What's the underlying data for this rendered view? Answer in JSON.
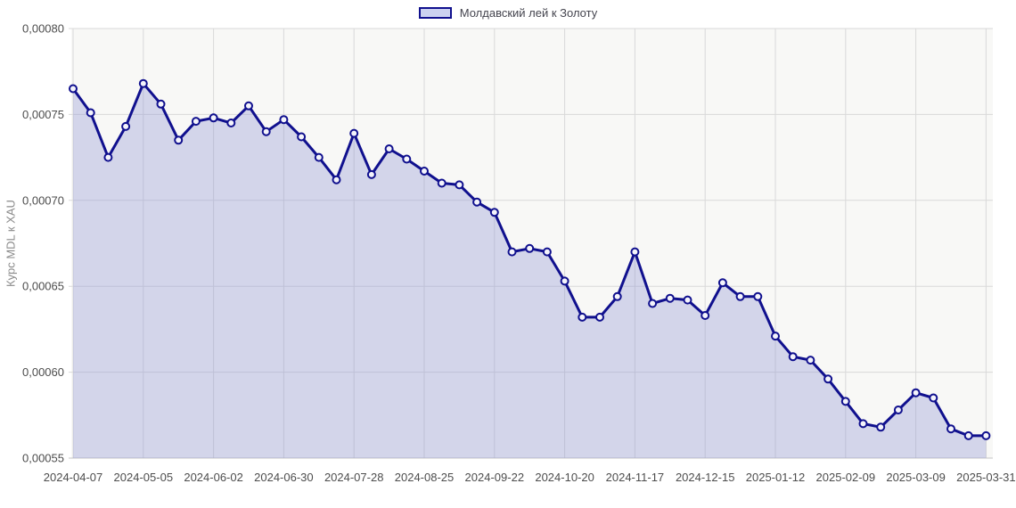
{
  "chart_data": {
    "type": "area",
    "title": "",
    "legend": "Молдавский лей к Золоту",
    "ylabel": "Курс MDL к XAU",
    "xlabel": "",
    "grid": true,
    "legend_position": "top-center",
    "x": [
      "2024-04-07",
      "2024-04-14",
      "2024-04-21",
      "2024-04-28",
      "2024-05-05",
      "2024-05-12",
      "2024-05-19",
      "2024-05-26",
      "2024-06-02",
      "2024-06-09",
      "2024-06-16",
      "2024-06-23",
      "2024-06-30",
      "2024-07-07",
      "2024-07-14",
      "2024-07-21",
      "2024-07-28",
      "2024-08-04",
      "2024-08-11",
      "2024-08-18",
      "2024-08-25",
      "2024-09-01",
      "2024-09-08",
      "2024-09-15",
      "2024-09-22",
      "2024-09-29",
      "2024-10-06",
      "2024-10-13",
      "2024-10-20",
      "2024-10-27",
      "2024-11-03",
      "2024-11-10",
      "2024-11-17",
      "2024-11-24",
      "2024-12-01",
      "2024-12-08",
      "2024-12-15",
      "2024-12-22",
      "2024-12-29",
      "2025-01-05",
      "2025-01-12",
      "2025-01-19",
      "2025-01-26",
      "2025-02-02",
      "2025-02-09",
      "2025-02-16",
      "2025-02-23",
      "2025-03-02",
      "2025-03-09",
      "2025-03-16",
      "2025-03-23",
      "2025-03-30",
      "2025-03-31"
    ],
    "values": [
      0.000765,
      0.000751,
      0.000725,
      0.000743,
      0.000768,
      0.000756,
      0.000735,
      0.000746,
      0.000748,
      0.000745,
      0.000755,
      0.00074,
      0.000747,
      0.000737,
      0.000725,
      0.000712,
      0.000739,
      0.000715,
      0.00073,
      0.000724,
      0.000717,
      0.00071,
      0.000709,
      0.000699,
      0.000693,
      0.00067,
      0.000672,
      0.00067,
      0.000653,
      0.000632,
      0.000632,
      0.000644,
      0.00067,
      0.00064,
      0.000643,
      0.000642,
      0.000633,
      0.000652,
      0.000644,
      0.000644,
      0.000621,
      0.000609,
      0.000607,
      0.000596,
      0.000583,
      0.00057,
      0.000568,
      0.000578,
      0.000588,
      0.000585,
      0.000567,
      0.000563,
      0.000563
    ],
    "x_ticks": {
      "indices": [
        0,
        4,
        8,
        12,
        16,
        20,
        24,
        28,
        32,
        36,
        40,
        44,
        48,
        52
      ],
      "labels": [
        "2024-04-07",
        "2024-05-05",
        "2024-06-02",
        "2024-06-30",
        "2024-07-28",
        "2024-08-25",
        "2024-09-22",
        "2024-10-20",
        "2024-11-17",
        "2024-12-15",
        "2025-01-12",
        "2025-02-09",
        "2025-03-09",
        "2025-03-31"
      ]
    },
    "y_axis": {
      "min": 0.00055,
      "max": 0.0008,
      "tick_values": [
        0.0008,
        0.00075,
        0.0007,
        0.00065,
        0.0006,
        0.00055
      ],
      "tick_labels": [
        "0,00080",
        "0,00075",
        "0,00070",
        "0,00065",
        "0,00060",
        "0,00055"
      ]
    },
    "colors": {
      "line": "#10108e",
      "marker_fill": "#f4f4fb",
      "area_fill": "#8c94d2",
      "area_opacity": 0.34,
      "grid": "#d9d9d9",
      "axis_line": "#c4c4c4",
      "axis_text": "#4d4d4d",
      "ylabel_color": "#8a8a8a",
      "plot_bg": "#f8f8f6",
      "legend_text": "#44444e",
      "swatch_fill": "#ccd2f0"
    }
  }
}
